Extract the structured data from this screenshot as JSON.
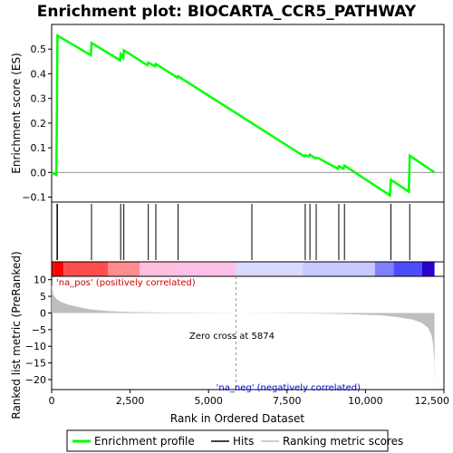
{
  "chart_data": {
    "type": "line",
    "title": "Enrichment plot: BIOCARTA_CCR5_PATHWAY",
    "es_panel": {
      "ylabel": "Enrichment score (ES)",
      "ylim": [
        -0.12,
        0.6
      ],
      "yticks": [
        -0.1,
        0.0,
        0.1,
        0.2,
        0.3,
        0.4,
        0.5
      ],
      "ytick_labels": [
        "−0.1",
        "0.0",
        "0.1",
        "0.2",
        "0.3",
        "0.4",
        "0.5"
      ],
      "color": "#00ff00",
      "points": [
        [
          0,
          0.0
        ],
        [
          150,
          -0.01
        ],
        [
          170,
          0.28
        ],
        [
          185,
          0.555
        ],
        [
          1250,
          0.475
        ],
        [
          1270,
          0.525
        ],
        [
          2180,
          0.455
        ],
        [
          2200,
          0.48
        ],
        [
          2280,
          0.465
        ],
        [
          2300,
          0.495
        ],
        [
          3050,
          0.435
        ],
        [
          3080,
          0.445
        ],
        [
          3300,
          0.43
        ],
        [
          3320,
          0.44
        ],
        [
          4000,
          0.385
        ],
        [
          4030,
          0.39
        ],
        [
          6380,
          0.2
        ],
        [
          8050,
          0.065
        ],
        [
          8080,
          0.07
        ],
        [
          8200,
          0.065
        ],
        [
          8230,
          0.072
        ],
        [
          8400,
          0.057
        ],
        [
          8430,
          0.06
        ],
        [
          8500,
          0.058
        ],
        [
          9120,
          0.015
        ],
        [
          9150,
          0.025
        ],
        [
          9300,
          0.015
        ],
        [
          9330,
          0.028
        ],
        [
          10780,
          -0.093
        ],
        [
          10810,
          -0.03
        ],
        [
          11380,
          -0.078
        ],
        [
          11410,
          0.068
        ],
        [
          12200,
          0.0
        ]
      ]
    },
    "hits": [
      170,
      185,
      1270,
      2200,
      2300,
      3080,
      3320,
      4030,
      6380,
      8080,
      8230,
      8430,
      9150,
      9330,
      10810,
      11410
    ],
    "rank_panel": {
      "ylabel": "Ranked list metric (PreRanked)",
      "ylim": [
        -23,
        11
      ],
      "yticks": [
        10,
        5,
        0,
        -5,
        -10,
        -15,
        -20
      ],
      "ytick_labels": [
        "10",
        "5",
        "0",
        "−5",
        "−10",
        "−15",
        "−20"
      ],
      "points": [
        [
          0,
          8.5
        ],
        [
          50,
          5.5
        ],
        [
          150,
          4.2
        ],
        [
          300,
          3.3
        ],
        [
          500,
          2.6
        ],
        [
          800,
          1.9
        ],
        [
          1200,
          1.1
        ],
        [
          1800,
          0.55
        ],
        [
          2500,
          0.3
        ],
        [
          3500,
          0.15
        ],
        [
          4500,
          0.07
        ],
        [
          5874,
          0.0
        ],
        [
          7000,
          -0.1
        ],
        [
          8500,
          -0.2
        ],
        [
          9500,
          -0.35
        ],
        [
          10500,
          -0.7
        ],
        [
          11000,
          -1.2
        ],
        [
          11500,
          -2.0
        ],
        [
          11800,
          -3.0
        ],
        [
          12000,
          -4.5
        ],
        [
          12100,
          -6.5
        ],
        [
          12150,
          -9.0
        ],
        [
          12190,
          -14.0
        ],
        [
          12200,
          -22.5
        ]
      ],
      "fill": "#bebebe"
    },
    "gradient_bar": {
      "segments": [
        {
          "from": 0,
          "to": 80,
          "color": "#e60000"
        },
        {
          "from": 80,
          "to": 380,
          "color": "#ff0000"
        },
        {
          "from": 380,
          "to": 1800,
          "color": "#ff4d4d"
        },
        {
          "from": 1800,
          "to": 2800,
          "color": "#ff8c8c"
        },
        {
          "from": 2800,
          "to": 4000,
          "color": "#ffbfdd"
        },
        {
          "from": 4000,
          "to": 5874,
          "color": "#ffc0e8"
        },
        {
          "from": 5874,
          "to": 8000,
          "color": "#d9d9ff"
        },
        {
          "from": 8000,
          "to": 10300,
          "color": "#c8c8ff"
        },
        {
          "from": 10300,
          "to": 10900,
          "color": "#8080ff"
        },
        {
          "from": 10900,
          "to": 11800,
          "color": "#4d4dff"
        },
        {
          "from": 11800,
          "to": 12200,
          "color": "#2a00cc"
        }
      ]
    },
    "xlabel": "Rank in Ordered Dataset",
    "xlim": [
      0,
      12500
    ],
    "xticks": [
      0,
      2500,
      5000,
      7500,
      10000,
      12500
    ],
    "xtick_labels": [
      "0",
      "2,500",
      "5,000",
      "7,500",
      "10,000",
      "12,500"
    ],
    "zero_cross_rank": 5874,
    "annotations": {
      "pos": "'na_pos' (positively correlated)",
      "zero": "Zero cross at 5874",
      "neg": "'na_neg' (negatively correlated)"
    },
    "legend": [
      {
        "label": "Enrichment profile",
        "color": "#00ff00"
      },
      {
        "label": "Hits",
        "color": "#000000"
      },
      {
        "label": "Ranking metric scores",
        "color": "#bebebe"
      }
    ]
  }
}
